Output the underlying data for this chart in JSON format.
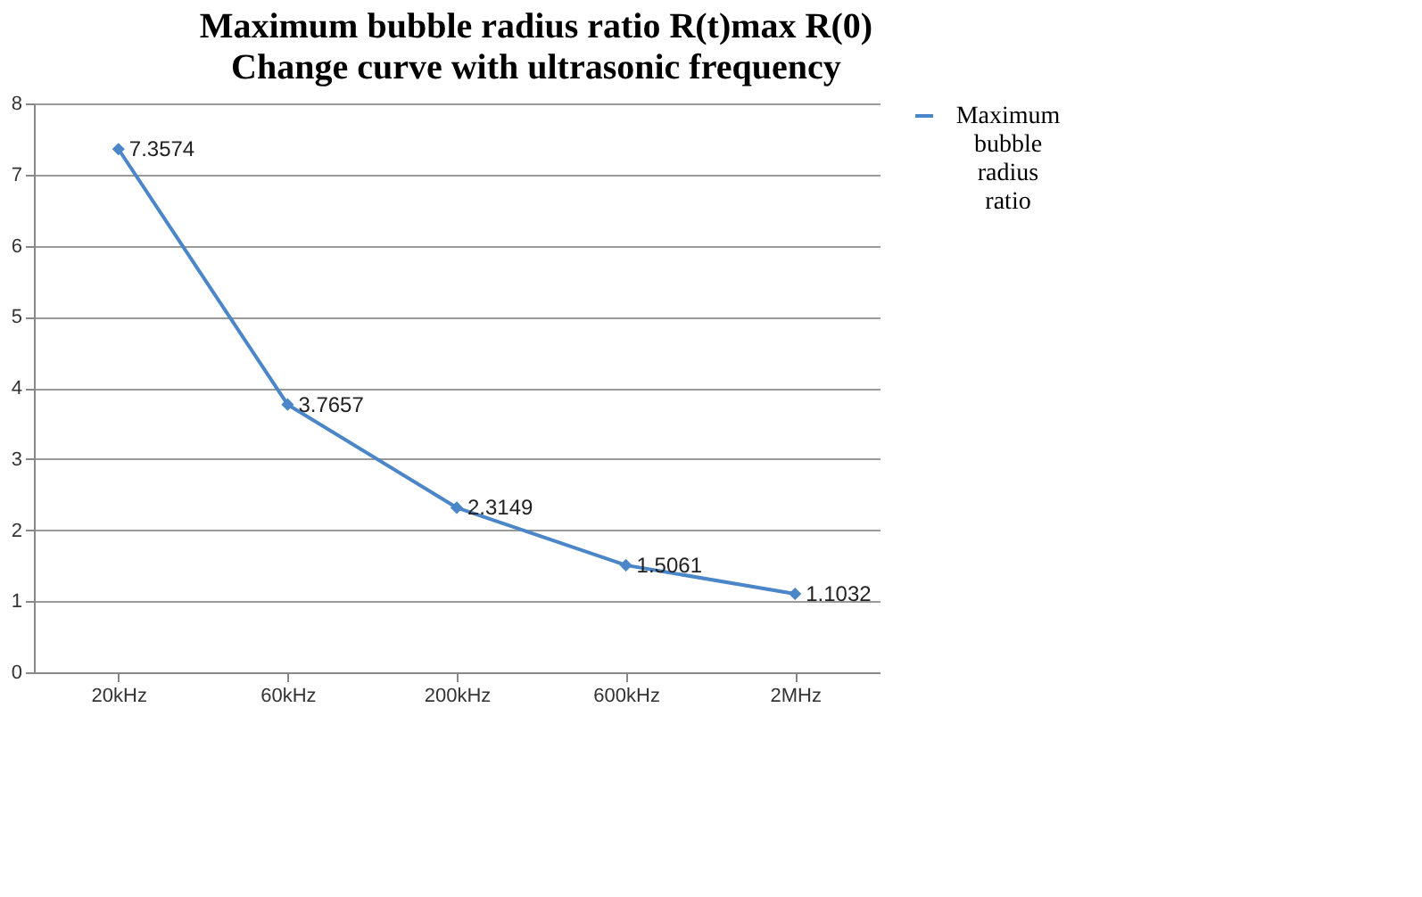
{
  "chart_data": {
    "type": "line",
    "title": "Maximum bubble radius ratio R(t)max R(0)",
    "subtitle": "Change curve with ultrasonic frequency",
    "categories": [
      "20kHz",
      "60kHz",
      "200kHz",
      "600kHz",
      "2MHz"
    ],
    "series": [
      {
        "name": "Maximum bubble radius ratio",
        "color": "#4a86c8",
        "values": [
          7.3574,
          3.7657,
          2.3149,
          1.5061,
          1.1032
        ]
      }
    ],
    "ylim": [
      0,
      8
    ],
    "yticks": [
      0,
      1,
      2,
      3,
      4,
      5,
      6,
      7,
      8
    ],
    "grid": "y",
    "legend": "right",
    "marker": "diamond",
    "line_style": "solid",
    "data_labels": true
  }
}
